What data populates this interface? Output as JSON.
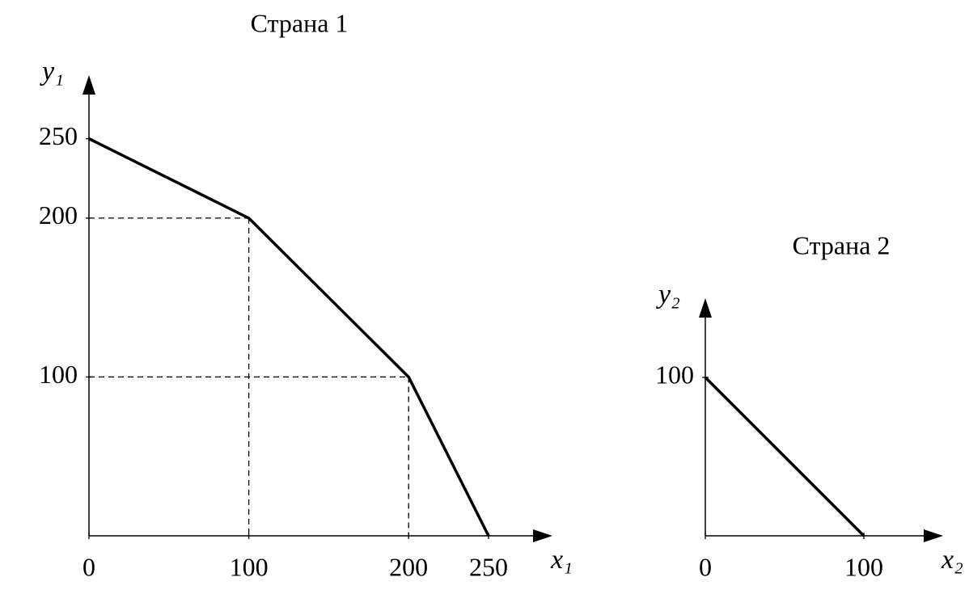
{
  "chart_data": [
    {
      "type": "line",
      "title": "Страна 1",
      "x_label": "x₁",
      "y_label": "y₁",
      "x": [
        0,
        100,
        200,
        250
      ],
      "values": [
        250,
        200,
        100,
        0
      ],
      "color": "#000000",
      "xlim": [
        0,
        290
      ],
      "ylim": [
        0,
        290
      ],
      "xticks": [
        0,
        100,
        200,
        250
      ],
      "yticks": [
        100,
        200,
        250
      ],
      "dashed_guides": true
    },
    {
      "type": "line",
      "title": "Страна 2",
      "x_label": "x₂",
      "y_label": "y₂",
      "x": [
        0,
        100
      ],
      "values": [
        100,
        0
      ],
      "color": "#000000",
      "xlim": [
        0,
        150
      ],
      "ylim": [
        0,
        150
      ],
      "xticks": [
        0,
        100
      ],
      "yticks": [
        100
      ],
      "dashed_guides": true
    }
  ]
}
